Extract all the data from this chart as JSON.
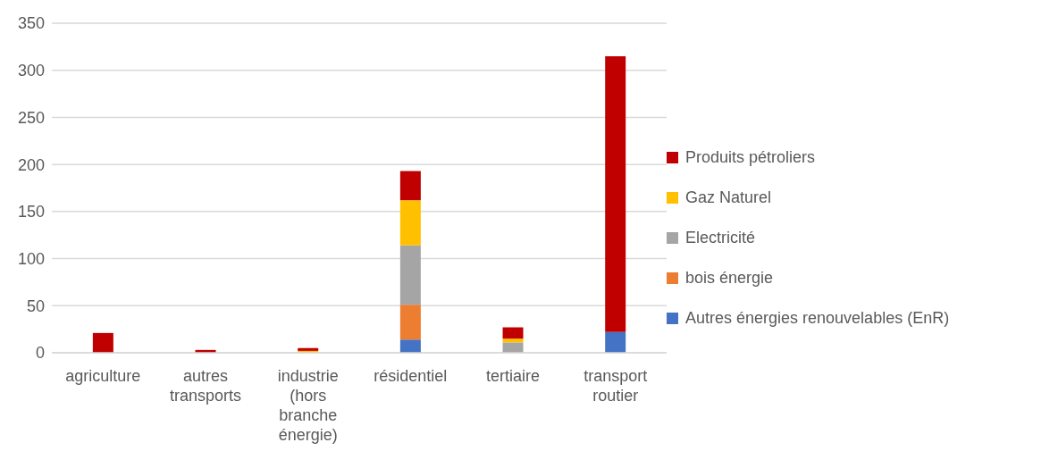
{
  "chart_data": {
    "type": "bar",
    "stacked": true,
    "categories": [
      "agriculture",
      "autres transports",
      "industrie (hors branche énergie)",
      "résidentiel",
      "tertiaire",
      "transport routier"
    ],
    "series": [
      {
        "name": "Autres énergies renouvelables (EnR)",
        "color": "#4472c4",
        "values": [
          null,
          0,
          0,
          14,
          0,
          22
        ]
      },
      {
        "name": "bois énergie",
        "color": "#ed7d31",
        "values": [
          0,
          0,
          0,
          37,
          0,
          0
        ]
      },
      {
        "name": "Electricité",
        "color": "#a5a5a5",
        "values": [
          null,
          null,
          null,
          63,
          11,
          0
        ]
      },
      {
        "name": "Gaz Naturel",
        "color": "#ffc000",
        "values": [
          0,
          0,
          2,
          48,
          4,
          0
        ]
      },
      {
        "name": "Produits pétroliers",
        "color": "#c00000",
        "values": [
          21,
          3,
          3,
          31,
          12,
          293
        ]
      }
    ],
    "ylim": [
      0,
      350
    ],
    "yticks": [
      0,
      50,
      100,
      150,
      200,
      250,
      300,
      350
    ],
    "grid": "y",
    "legend": "right"
  }
}
